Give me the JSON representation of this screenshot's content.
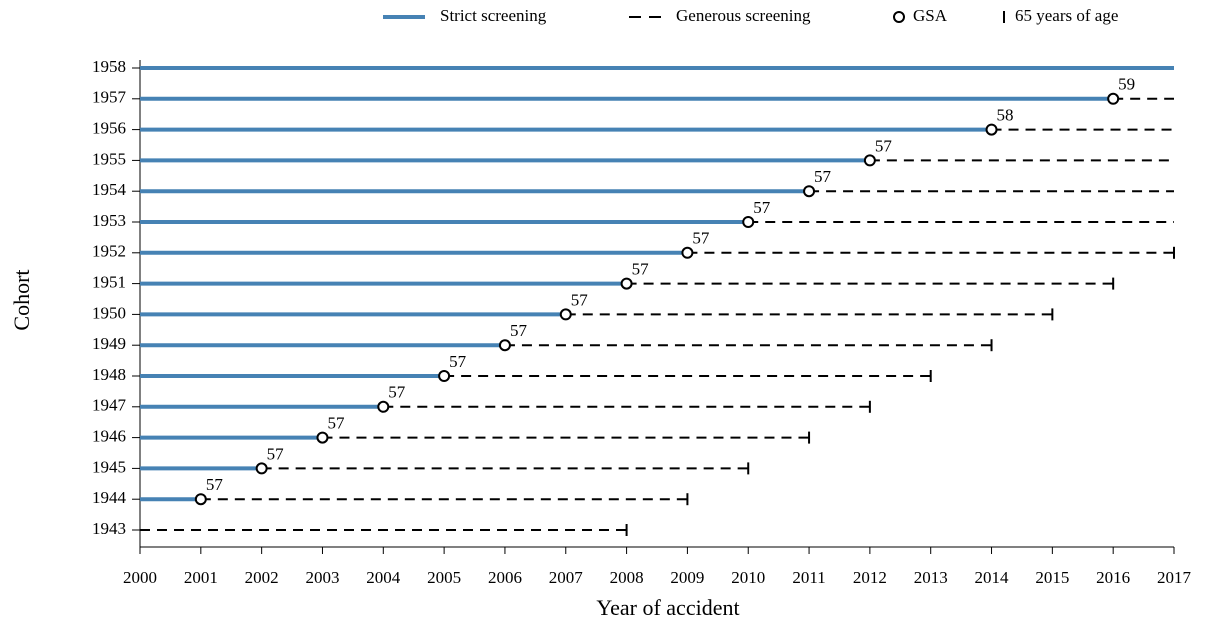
{
  "chart_data": {
    "type": "range-timeline",
    "x_label": "Year of accident",
    "y_label": "Cohort",
    "categories": [
      1943,
      1944,
      1945,
      1946,
      1947,
      1948,
      1949,
      1950,
      1951,
      1952,
      1953,
      1954,
      1955,
      1956,
      1957,
      1958
    ],
    "xlim": [
      2000,
      2017
    ],
    "xticks": [
      2000,
      2001,
      2002,
      2003,
      2004,
      2005,
      2006,
      2007,
      2008,
      2009,
      2010,
      2011,
      2012,
      2013,
      2014,
      2015,
      2016,
      2017
    ],
    "series": [
      {
        "name": "Strict screening",
        "color": "#4682b4",
        "start": [
          null,
          2000,
          2000,
          2000,
          2000,
          2000,
          2000,
          2000,
          2000,
          2000,
          2000,
          2000,
          2000,
          2000,
          2000,
          2000
        ],
        "end": [
          null,
          2001,
          2002,
          2003,
          2004,
          2005,
          2006,
          2007,
          2008,
          2009,
          2010,
          2011,
          2012,
          2014,
          2016,
          2017
        ]
      },
      {
        "name": "Generous screening",
        "color": "#000000",
        "start": [
          2000,
          2001,
          2002,
          2003,
          2004,
          2005,
          2006,
          2007,
          2008,
          2009,
          2010,
          2011,
          2012,
          2014,
          2016,
          null
        ],
        "end": [
          2008,
          2009,
          2010,
          2011,
          2012,
          2013,
          2014,
          2015,
          2016,
          2017,
          2017,
          2017,
          2017,
          2017,
          2017,
          null
        ]
      },
      {
        "name": "GSA",
        "color": "#000000",
        "values": [
          null,
          2001,
          2002,
          2003,
          2004,
          2005,
          2006,
          2007,
          2008,
          2009,
          2010,
          2011,
          2012,
          2014,
          2016,
          null
        ],
        "ages": [
          null,
          57,
          57,
          57,
          57,
          57,
          57,
          57,
          57,
          57,
          57,
          57,
          57,
          58,
          59,
          null
        ]
      },
      {
        "name": "65 years of age",
        "color": "#000000",
        "values": [
          2008,
          2009,
          2010,
          2011,
          2012,
          2013,
          2014,
          2015,
          2016,
          2017,
          null,
          null,
          null,
          null,
          null,
          null
        ]
      }
    ]
  }
}
